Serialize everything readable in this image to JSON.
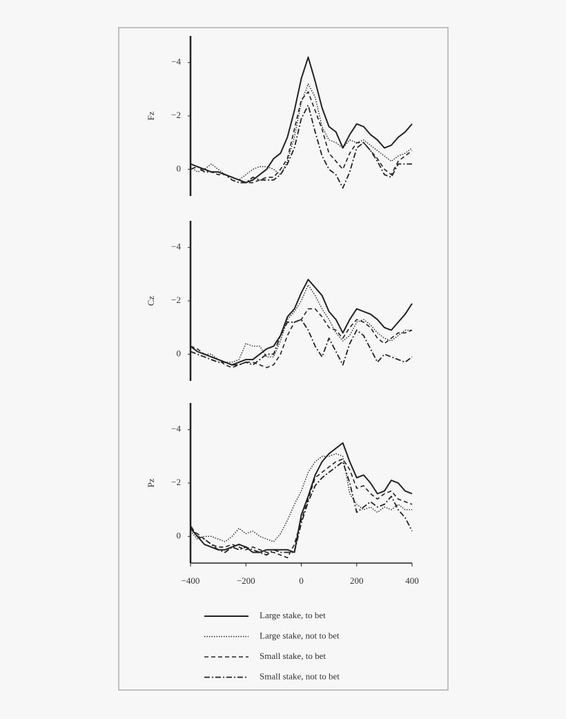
{
  "chart_data": {
    "type": "line",
    "x": [
      -400,
      -375,
      -350,
      -325,
      -300,
      -275,
      -250,
      -225,
      -200,
      -175,
      -150,
      -125,
      -100,
      -75,
      -50,
      -25,
      0,
      25,
      50,
      75,
      100,
      125,
      150,
      175,
      200,
      225,
      250,
      275,
      300,
      325,
      350,
      375,
      400
    ],
    "xlim": [
      -400,
      400
    ],
    "xticks": [
      {
        "value": -400,
        "label": "−400"
      },
      {
        "value": -200,
        "label": "−200"
      },
      0,
      200,
      400
    ],
    "series": [
      {
        "name": "Large stake, to bet",
        "color": "#222222",
        "dash": "solid"
      },
      {
        "name": "Large stake, not to bet",
        "color": "#222222",
        "dash": "dotted"
      },
      {
        "name": "Small stake, to bet",
        "color": "#222222",
        "dash": "dashed"
      },
      {
        "name": "Small stake, not to bet",
        "color": "#222222",
        "dash": "dashdot"
      }
    ],
    "panels": [
      {
        "ylabel": "Fz",
        "ylim": [
          1,
          -5
        ],
        "yticks": [
          {
            "value": -4,
            "label": "−4"
          },
          {
            "value": -2,
            "label": "−2"
          },
          0
        ],
        "values": [
          [
            -0.2,
            -0.1,
            0.0,
            0.1,
            0.1,
            0.2,
            0.3,
            0.4,
            0.5,
            0.4,
            0.2,
            0.0,
            -0.4,
            -0.6,
            -1.2,
            -2.2,
            -3.4,
            -4.2,
            -3.3,
            -2.3,
            -1.6,
            -1.4,
            -0.8,
            -1.3,
            -1.7,
            -1.6,
            -1.3,
            -1.1,
            -0.8,
            -0.9,
            -1.2,
            -1.4,
            -1.7
          ],
          [
            -0.1,
            0.1,
            0,
            -0.2,
            0,
            0.2,
            0.3,
            0.4,
            0.2,
            0,
            -0.1,
            -0.1,
            0,
            0.2,
            -0.3,
            -1.2,
            -2.5,
            -3.2,
            -2.7,
            -1.6,
            -1.1,
            -1.0,
            -0.8,
            -1.1,
            -1.0,
            -1.1,
            -0.9,
            -0.7,
            -0.5,
            -0.3,
            -0.5,
            -0.6,
            -0.8
          ],
          [
            -0.2,
            -0.1,
            0,
            0.1,
            0.2,
            0.2,
            0.3,
            0.4,
            0.5,
            0.5,
            0.4,
            0.3,
            0.3,
            0,
            -0.4,
            -1.5,
            -2.6,
            -2.9,
            -2.2,
            -1.5,
            -0.6,
            -0.3,
            0,
            -0.6,
            -1.0,
            -1.0,
            -0.7,
            -0.4,
            0,
            0.2,
            -0.3,
            -0.5,
            -0.7
          ],
          [
            0,
            -0.1,
            0.1,
            0.1,
            0.1,
            0.2,
            0.4,
            0.5,
            0.5,
            0.3,
            0.4,
            0.4,
            0.4,
            0.2,
            -0.2,
            -0.8,
            -1.9,
            -2.4,
            -1.4,
            -0.5,
            0,
            0.2,
            0.7,
            0.1,
            -0.8,
            -1.0,
            -0.7,
            -0.3,
            0.2,
            0.3,
            -0.2,
            -0.2,
            -0.2
          ]
        ]
      },
      {
        "ylabel": "Cz",
        "ylim": [
          1,
          -5
        ],
        "yticks": [
          {
            "value": -4,
            "label": "−4"
          },
          {
            "value": -2,
            "label": "−2"
          },
          0
        ],
        "values": [
          [
            -0.3,
            -0.1,
            0,
            0.1,
            0.2,
            0.3,
            0.4,
            0.3,
            0.2,
            0.2,
            0,
            -0.2,
            -0.3,
            -0.7,
            -1.4,
            -1.7,
            -2.3,
            -2.8,
            -2.5,
            -2.2,
            -1.6,
            -1.3,
            -0.8,
            -1.3,
            -1.7,
            -1.6,
            -1.5,
            -1.3,
            -1.0,
            -0.9,
            -1.2,
            -1.5,
            -1.9
          ],
          [
            -0.3,
            -0.1,
            0,
            0,
            0.2,
            0.3,
            0.3,
            0.2,
            -0.4,
            -0.3,
            -0.3,
            0.1,
            0.1,
            -0.5,
            -1.3,
            -1.6,
            -2.0,
            -2.6,
            -2.2,
            -1.7,
            -1.3,
            -0.8,
            -0.5,
            -0.7,
            -1.2,
            -1.3,
            -1.1,
            -0.8,
            -0.6,
            -0.5,
            -0.7,
            -0.9,
            -0.9
          ],
          [
            -0.3,
            -0.2,
            0,
            0.1,
            0.2,
            0.4,
            0.5,
            0.4,
            0.3,
            0.3,
            0.4,
            0.5,
            0.4,
            0,
            -0.7,
            -1.2,
            -1.3,
            -1.7,
            -1.7,
            -1.4,
            -1.0,
            -0.9,
            -0.6,
            -1.0,
            -1.3,
            -1.2,
            -1.0,
            -0.6,
            -0.4,
            -0.6,
            -0.8,
            -0.8,
            -0.9
          ],
          [
            -0.1,
            0,
            0.1,
            0.2,
            0.3,
            0.3,
            0.4,
            0.4,
            0.3,
            0.4,
            0.2,
            0,
            0,
            -0.7,
            -1.2,
            -1.2,
            -1.3,
            -0.9,
            -0.3,
            0.1,
            -0.6,
            -0.1,
            0.4,
            -0.4,
            -0.9,
            -0.7,
            -0.2,
            0.3,
            0,
            0.1,
            0.2,
            0.3,
            0.1
          ]
        ]
      },
      {
        "ylabel": "Pz",
        "ylim": [
          1,
          -5
        ],
        "yticks": [
          {
            "value": -4,
            "label": "−4"
          },
          {
            "value": -2,
            "label": "−2"
          },
          0
        ],
        "values": [
          [
            -0.3,
            0,
            0.3,
            0.4,
            0.5,
            0.5,
            0.4,
            0.3,
            0.4,
            0.6,
            0.6,
            0.5,
            0.5,
            0.5,
            0.5,
            0.6,
            -0.8,
            -1.5,
            -2.3,
            -2.8,
            -3.1,
            -3.3,
            -3.5,
            -2.8,
            -2.2,
            -2.3,
            -2.0,
            -1.6,
            -1.7,
            -2.1,
            -2.0,
            -1.7,
            -1.6
          ],
          [
            -0.2,
            0.1,
            0,
            0,
            0.1,
            0.2,
            0,
            -0.3,
            -0.1,
            -0.2,
            0,
            0.1,
            0.2,
            -0.1,
            -0.6,
            -1.2,
            -1.7,
            -2.4,
            -2.8,
            -3.0,
            -3.0,
            -3.1,
            -3.0,
            -1.6,
            -1.2,
            -1.0,
            -1.1,
            -0.9,
            -1.1,
            -1.0,
            -1.2,
            -1.0,
            -1.0
          ],
          [
            -0.3,
            -0.1,
            0.1,
            0.3,
            0.4,
            0.4,
            0.3,
            0.4,
            0.5,
            0.4,
            0.5,
            0.6,
            0.6,
            0.7,
            0.8,
            0.3,
            -0.6,
            -1.4,
            -2.2,
            -2.4,
            -2.6,
            -2.8,
            -2.9,
            -2.5,
            -1.8,
            -1.9,
            -1.6,
            -1.4,
            -1.6,
            -1.7,
            -1.4,
            -1.3,
            -1.2
          ],
          [
            -0.4,
            0,
            0.1,
            0.3,
            0.5,
            0.6,
            0.4,
            0.5,
            0.4,
            0.5,
            0.6,
            0.7,
            0.5,
            0.6,
            0.6,
            0.6,
            -0.5,
            -1.3,
            -1.9,
            -2.2,
            -2.4,
            -2.6,
            -2.8,
            -2.0,
            -0.9,
            -1.1,
            -1.3,
            -1.1,
            -1.2,
            -1.5,
            -1.0,
            -0.7,
            -0.2
          ]
        ]
      }
    ]
  }
}
